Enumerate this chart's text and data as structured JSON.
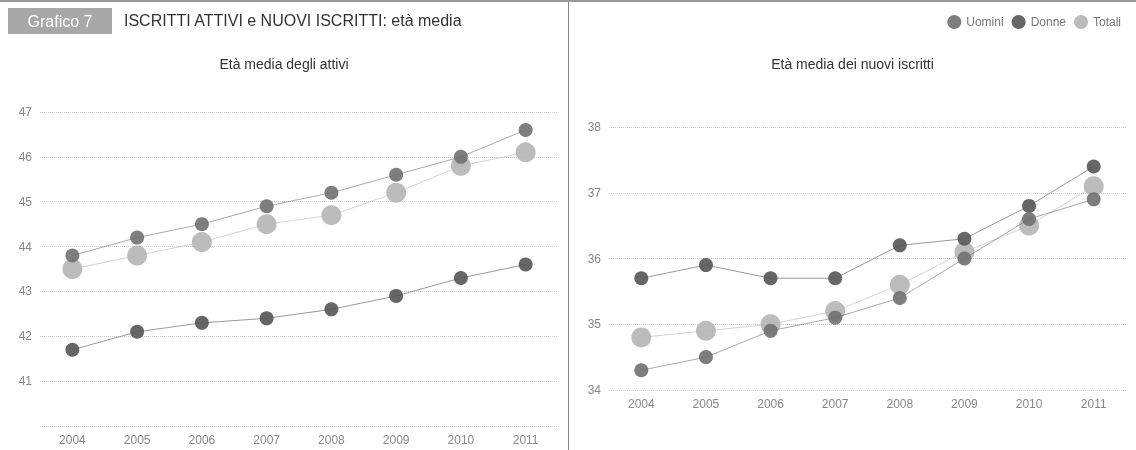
{
  "chart_data": [
    {
      "type": "line",
      "title": "Età media degli attivi",
      "annotations": [
        "Grafico 7",
        "ISCRITTI ATTIVI e NUOVI ISCRITTI: età media"
      ],
      "categories": [
        "2004",
        "2005",
        "2006",
        "2007",
        "2008",
        "2009",
        "2010",
        "2011"
      ],
      "series": [
        {
          "color": "#707070",
          "values": [
            43.8,
            44.2,
            44.5,
            44.9,
            45.2,
            45.6,
            46.0,
            46.6
          ]
        },
        {
          "color": "#555555",
          "values": [
            41.7,
            42.1,
            42.3,
            42.4,
            42.6,
            42.9,
            43.3,
            43.6
          ]
        },
        {
          "color": "#b5b5b5",
          "values": [
            43.5,
            43.8,
            44.1,
            44.5,
            44.7,
            45.2,
            45.8,
            46.1
          ]
        }
      ],
      "ylim": [
        40,
        47
      ],
      "yticks": [
        {
          "value": 40,
          "label": null
        },
        41,
        42,
        43,
        44,
        45,
        46,
        47
      ],
      "grid": "y",
      "marker": "circle",
      "legend": false
    },
    {
      "type": "line",
      "title": "Età media dei nuovi iscritti",
      "categories": [
        "2004",
        "2005",
        "2006",
        "2007",
        "2008",
        "2009",
        "2010",
        "2011"
      ],
      "series": [
        {
          "name": "Uomini",
          "color": "#707070",
          "values": [
            34.3,
            34.5,
            34.9,
            35.1,
            35.4,
            36.0,
            36.6,
            36.9
          ]
        },
        {
          "name": "Donne",
          "color": "#555555",
          "values": [
            35.7,
            35.9,
            35.7,
            35.7,
            36.2,
            36.3,
            36.8,
            37.4
          ]
        },
        {
          "name": "Totali",
          "color": "#b5b5b5",
          "values": [
            34.8,
            34.9,
            35.0,
            35.2,
            35.6,
            36.1,
            36.5,
            37.1
          ]
        }
      ],
      "ylim": [
        34,
        38
      ],
      "yticks": [
        34,
        35,
        36,
        37,
        38
      ],
      "grid": "y",
      "marker": "circle",
      "legend": "top right"
    }
  ]
}
